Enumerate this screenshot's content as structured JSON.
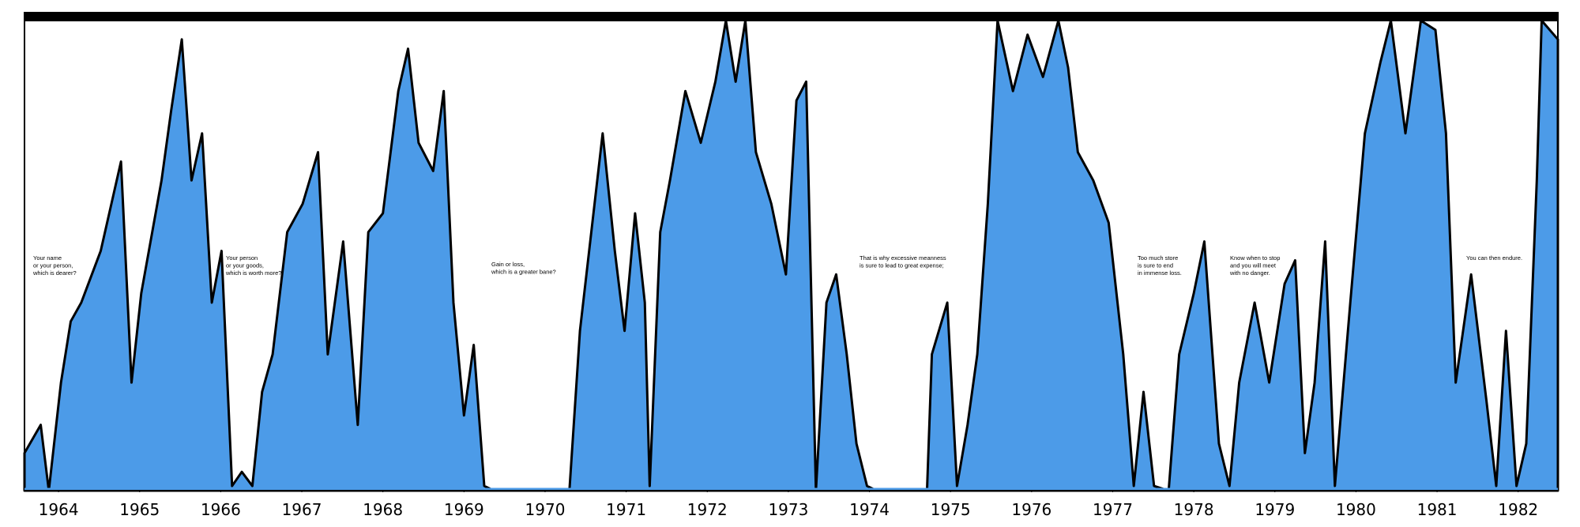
{
  "chart_data": {
    "type": "area",
    "x": [
      1963.58,
      1963.78,
      1963.88,
      1964.03,
      1964.15,
      1964.28,
      1964.52,
      1964.77,
      1964.9,
      1965.02,
      1965.27,
      1965.39,
      1965.52,
      1965.64,
      1965.77,
      1965.89,
      1966.01,
      1966.14,
      1966.26,
      1966.39,
      1966.51,
      1966.64,
      1966.82,
      1967.01,
      1967.2,
      1967.32,
      1967.51,
      1967.69,
      1967.82,
      1968.0,
      1968.19,
      1968.31,
      1968.44,
      1968.62,
      1968.75,
      1968.87,
      1969.0,
      1969.12,
      1969.25,
      1969.37,
      1970.3,
      1970.43,
      1970.61,
      1970.71,
      1970.86,
      1970.98,
      1971.11,
      1971.23,
      1971.29,
      1971.42,
      1971.54,
      1971.73,
      1971.92,
      1972.1,
      1972.23,
      1972.35,
      1972.47,
      1972.6,
      1972.79,
      1972.97,
      1973.1,
      1973.22,
      1973.34,
      1973.47,
      1973.59,
      1973.72,
      1973.84,
      1973.97,
      1974.09,
      1974.71,
      1974.77,
      1974.96,
      1975.08,
      1975.21,
      1975.33,
      1975.46,
      1975.58,
      1975.77,
      1975.95,
      1976.14,
      1976.33,
      1976.45,
      1976.57,
      1976.76,
      1976.95,
      1977.13,
      1977.26,
      1977.38,
      1977.51,
      1977.69,
      1977.82,
      1978.0,
      1978.13,
      1978.31,
      1978.44,
      1978.56,
      1978.75,
      1978.93,
      1979.12,
      1979.25,
      1979.37,
      1979.49,
      1979.62,
      1979.74,
      1979.93,
      1980.11,
      1980.3,
      1980.43,
      1980.61,
      1980.8,
      1980.98,
      1981.11,
      1981.23,
      1981.42,
      1981.61,
      1981.73,
      1981.85,
      1981.98,
      1982.1,
      1982.23,
      1982.29,
      1982.49
    ],
    "series": [
      {
        "color": "#4c9be8",
        "values": [
          8,
          14,
          0,
          23,
          36,
          40,
          51,
          70,
          23,
          42,
          66,
          81,
          96,
          66,
          76,
          40,
          51,
          1,
          4,
          1,
          21,
          29,
          55,
          61,
          72,
          29,
          53,
          14,
          55,
          59,
          85,
          94,
          74,
          68,
          85,
          40,
          16,
          31,
          1,
          0,
          0,
          34,
          61,
          76,
          51,
          34,
          59,
          40,
          1,
          55,
          66,
          85,
          74,
          87,
          100,
          87,
          100,
          72,
          61,
          46,
          83,
          87,
          0,
          40,
          46,
          29,
          10,
          1,
          0,
          0,
          29,
          40,
          1,
          14,
          29,
          61,
          100,
          85,
          97,
          88,
          100,
          90,
          72,
          66,
          57,
          29,
          1,
          21,
          1,
          0,
          29,
          42,
          53,
          10,
          1,
          23,
          40,
          23,
          44,
          49,
          8,
          23,
          53,
          1,
          40,
          76,
          91,
          100,
          76,
          100,
          98,
          76,
          23,
          46,
          19,
          1,
          34,
          1,
          10,
          66,
          100,
          96
        ]
      }
    ],
    "xlim": [
      1963.58,
      1982.49
    ],
    "ylim": [
      0,
      100
    ],
    "xticks": [
      1964,
      1965,
      1966,
      1967,
      1968,
      1969,
      1970,
      1971,
      1972,
      1973,
      1974,
      1975,
      1976,
      1977,
      1978,
      1979,
      1980,
      1981,
      1982
    ],
    "annotations": [
      [
        "Your name",
        "or your person,",
        "which is dearer?"
      ],
      [
        "Your person",
        "or your goods,",
        "which is worth more?"
      ],
      [
        "Gain or loss,",
        "which is a greater bane?"
      ],
      [
        "That is why excessive meanness",
        "is sure to lead to great expense;"
      ],
      [
        "Too much store",
        "is sure to end",
        "in immense loss."
      ],
      [
        "Know when to stop",
        "and you will meet",
        "with no danger."
      ],
      [
        "You can then endure."
      ]
    ]
  }
}
